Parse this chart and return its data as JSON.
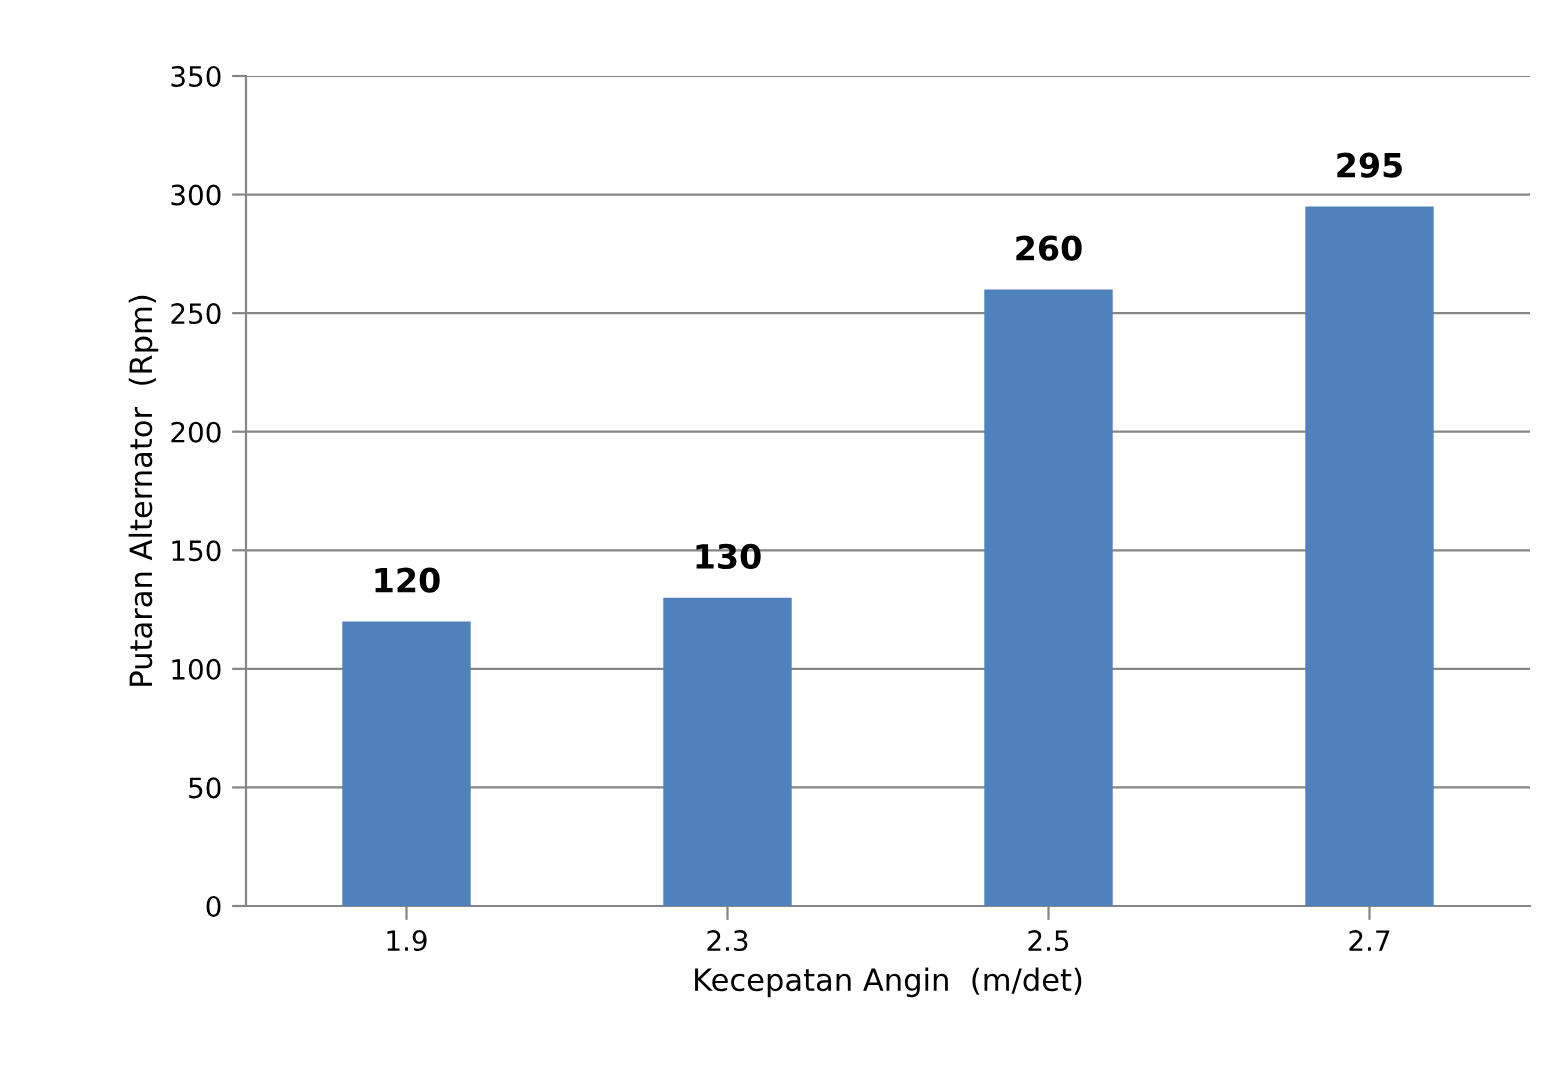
{
  "chart_data": {
    "type": "bar",
    "xlabel": "Kecepatan Angin  (m/det)",
    "ylabel": "Putaran Alternator  (Rpm)",
    "categories": [
      "1.9",
      "2.3",
      "2.5",
      "2.7"
    ],
    "values": [
      120,
      130,
      260,
      295
    ],
    "color": "#4f81bd",
    "ylim": [
      0,
      350
    ],
    "yticks": [
      0,
      50,
      100,
      150,
      200,
      250,
      300,
      350
    ],
    "grid": "y",
    "data_labels": true,
    "legend": false
  }
}
